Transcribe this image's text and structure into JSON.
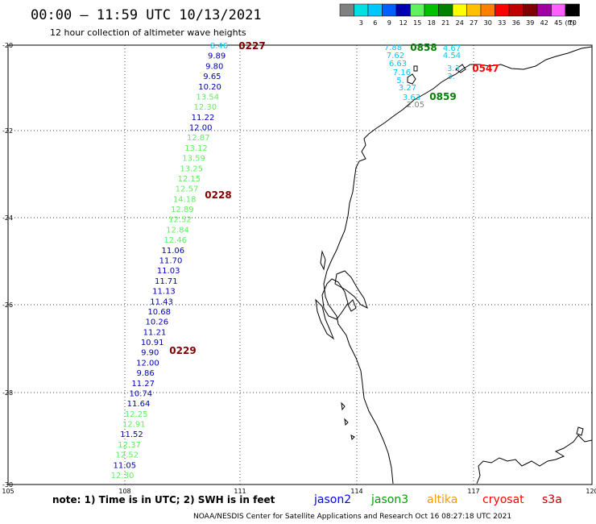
{
  "header": {
    "title": "00:00 – 11:59 UTC 10/13/2021",
    "subtitle": "12 hour collection of altimeter wave heights"
  },
  "legend": {
    "unit": "(ft)",
    "bins": [
      {
        "label": "",
        "color": "#808080"
      },
      {
        "label": "3",
        "color": "#00e0e0"
      },
      {
        "label": "6",
        "color": "#00c8ff"
      },
      {
        "label": "9",
        "color": "#0060ff"
      },
      {
        "label": "12",
        "color": "#0000b0"
      },
      {
        "label": "15",
        "color": "#60f060"
      },
      {
        "label": "18",
        "color": "#00c000"
      },
      {
        "label": "21",
        "color": "#008000"
      },
      {
        "label": "24",
        "color": "#ffff00"
      },
      {
        "label": "27",
        "color": "#ffc000"
      },
      {
        "label": "30",
        "color": "#ff8000"
      },
      {
        "label": "33",
        "color": "#ff0000"
      },
      {
        "label": "36",
        "color": "#c00000"
      },
      {
        "label": "39",
        "color": "#800000"
      },
      {
        "label": "42",
        "color": "#a000a0"
      },
      {
        "label": "45",
        "color": "#ff60ff"
      },
      {
        "label": "70",
        "color": "#000000"
      }
    ]
  },
  "map": {
    "lon_ticks": [
      "105",
      "108",
      "111",
      "114",
      "117",
      "120"
    ],
    "lat_ticks": [
      "-20",
      "-22",
      "-24",
      "-26",
      "-28",
      "-30"
    ]
  },
  "track_west": {
    "values": [
      {
        "v": "8.46",
        "c": "#00c8ff"
      },
      {
        "v": "9.89",
        "c": "#0000b0"
      },
      {
        "v": "9.80",
        "c": "#0000b0"
      },
      {
        "v": "9.65",
        "c": "#0000b0"
      },
      {
        "v": "10.20",
        "c": "#0000b0"
      },
      {
        "v": "13.54",
        "c": "#60f060"
      },
      {
        "v": "12.30",
        "c": "#60f060"
      },
      {
        "v": "11.22",
        "c": "#0000b0"
      },
      {
        "v": "12.00",
        "c": "#0000b0"
      },
      {
        "v": "12.87",
        "c": "#60f060"
      },
      {
        "v": "13.12",
        "c": "#60f060"
      },
      {
        "v": "13.59",
        "c": "#60f060"
      },
      {
        "v": "13.25",
        "c": "#60f060"
      },
      {
        "v": "12.15",
        "c": "#60f060"
      },
      {
        "v": "12.57",
        "c": "#60f060"
      },
      {
        "v": "14.18",
        "c": "#60f060"
      },
      {
        "v": "12.89",
        "c": "#60f060"
      },
      {
        "v": "12.52",
        "c": "#60f060"
      },
      {
        "v": "12.84",
        "c": "#60f060"
      },
      {
        "v": "12.46",
        "c": "#60f060"
      },
      {
        "v": "11.06",
        "c": "#0000b0"
      },
      {
        "v": "11.70",
        "c": "#0000b0"
      },
      {
        "v": "11.03",
        "c": "#0000b0"
      },
      {
        "v": "11.71",
        "c": "#0000b0"
      },
      {
        "v": "11.13",
        "c": "#0000b0"
      },
      {
        "v": "11.43",
        "c": "#0000b0"
      },
      {
        "v": "10.68",
        "c": "#0000b0"
      },
      {
        "v": "10.26",
        "c": "#0000b0"
      },
      {
        "v": "11.21",
        "c": "#0000b0"
      },
      {
        "v": "10.91",
        "c": "#0000b0"
      },
      {
        "v": "9.90",
        "c": "#0000b0"
      },
      {
        "v": "12.00",
        "c": "#0000b0"
      },
      {
        "v": "9.86",
        "c": "#0000b0"
      },
      {
        "v": "11.27",
        "c": "#0000b0"
      },
      {
        "v": "10.74",
        "c": "#0000b0"
      },
      {
        "v": "11.64",
        "c": "#0000b0"
      },
      {
        "v": "12.25",
        "c": "#60f060"
      },
      {
        "v": "12.91",
        "c": "#60f060"
      },
      {
        "v": "11.52",
        "c": "#0000b0"
      },
      {
        "v": "12.37",
        "c": "#60f060"
      },
      {
        "v": "12.52",
        "c": "#60f060"
      },
      {
        "v": "11.05",
        "c": "#0000b0"
      },
      {
        "v": "12.30",
        "c": "#60f060"
      }
    ],
    "times": [
      {
        "t": "0227",
        "c": "#800000"
      },
      {
        "t": "0228",
        "c": "#800000"
      },
      {
        "t": "0229",
        "c": "#800000"
      }
    ]
  },
  "track_coast": {
    "values": [
      {
        "v": "7.88",
        "c": "#00c8ff"
      },
      {
        "v": "7.62",
        "c": "#00c8ff"
      },
      {
        "v": "6.63",
        "c": "#00c8ff"
      },
      {
        "v": "7.16",
        "c": "#00c8ff"
      },
      {
        "v": "5.",
        "c": "#00c8ff"
      },
      {
        "v": "3.27",
        "c": "#00c8ff"
      },
      {
        "v": "3.63",
        "c": "#00c8ff"
      },
      {
        "v": "2.05",
        "c": "#808080"
      },
      {
        "v": "4.67",
        "c": "#00c8ff"
      },
      {
        "v": "4.54",
        "c": "#00c8ff"
      },
      {
        "v": "3.3",
        "c": "#00c8ff"
      },
      {
        "v": "3.",
        "c": "#00c8ff"
      }
    ],
    "times": [
      {
        "t": "0858",
        "c": "#008000"
      },
      {
        "t": "0859",
        "c": "#008000"
      },
      {
        "t": "0547",
        "c": "#ff0000"
      }
    ]
  },
  "footer": {
    "note": "note:  1) Time is in UTC; 2) SWH is in feet",
    "satellites": [
      {
        "name": "jason2",
        "color": "#0000ff"
      },
      {
        "name": "jason3",
        "color": "#00a000"
      },
      {
        "name": "altika",
        "color": "#ff9900"
      },
      {
        "name": "cryosat",
        "color": "#ff0000"
      },
      {
        "name": "s3a",
        "color": "#c00000"
      }
    ],
    "credit": "NOAA/NESDIS Center for Satellite Applications and Research    Oct 16 08:27:18 UTC 2021"
  }
}
